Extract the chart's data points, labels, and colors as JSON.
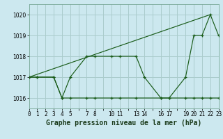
{
  "title": "Graphe pression niveau de la mer (hPa)",
  "background_color": "#cce8ef",
  "grid_color": "#aacccc",
  "line_color": "#1a5c1a",
  "series": [
    {
      "x": [
        0,
        1,
        3,
        4,
        5,
        7,
        8,
        10,
        11,
        13,
        14,
        16,
        17,
        19,
        20,
        21,
        22,
        23
      ],
      "y": [
        1017,
        1017,
        1017,
        1016,
        1017,
        1018,
        1018,
        1018,
        1018,
        1018,
        1017,
        1016,
        1016,
        1017,
        1019,
        1019,
        1020,
        1019
      ]
    },
    {
      "x": [
        0,
        1,
        3,
        4,
        5,
        7,
        8,
        10,
        11,
        13,
        16,
        17,
        19,
        20,
        21,
        22,
        23
      ],
      "y": [
        1017,
        1017,
        1017,
        1016,
        1016,
        1016,
        1016,
        1016,
        1016,
        1016,
        1016,
        1016,
        1016,
        1016,
        1016,
        1016,
        1016
      ]
    },
    {
      "x": [
        0,
        22
      ],
      "y": [
        1017,
        1020
      ]
    }
  ],
  "xlim": [
    0,
    23
  ],
  "ylim": [
    1015.5,
    1020.5
  ],
  "yticks": [
    1016,
    1017,
    1018,
    1019,
    1020
  ],
  "xtick_positions": [
    0,
    1,
    2,
    3,
    4,
    5,
    7,
    8,
    10,
    11,
    13,
    14,
    16,
    17,
    19,
    20,
    21,
    22,
    23
  ],
  "xtick_labels": [
    "0",
    "1",
    "2",
    "3",
    "4",
    "5",
    "7",
    "8",
    "10",
    "11",
    "13",
    "14",
    "16",
    "17",
    "19",
    "20",
    "21",
    "22",
    "23"
  ],
  "title_fontsize": 7,
  "tick_fontsize": 5.5
}
